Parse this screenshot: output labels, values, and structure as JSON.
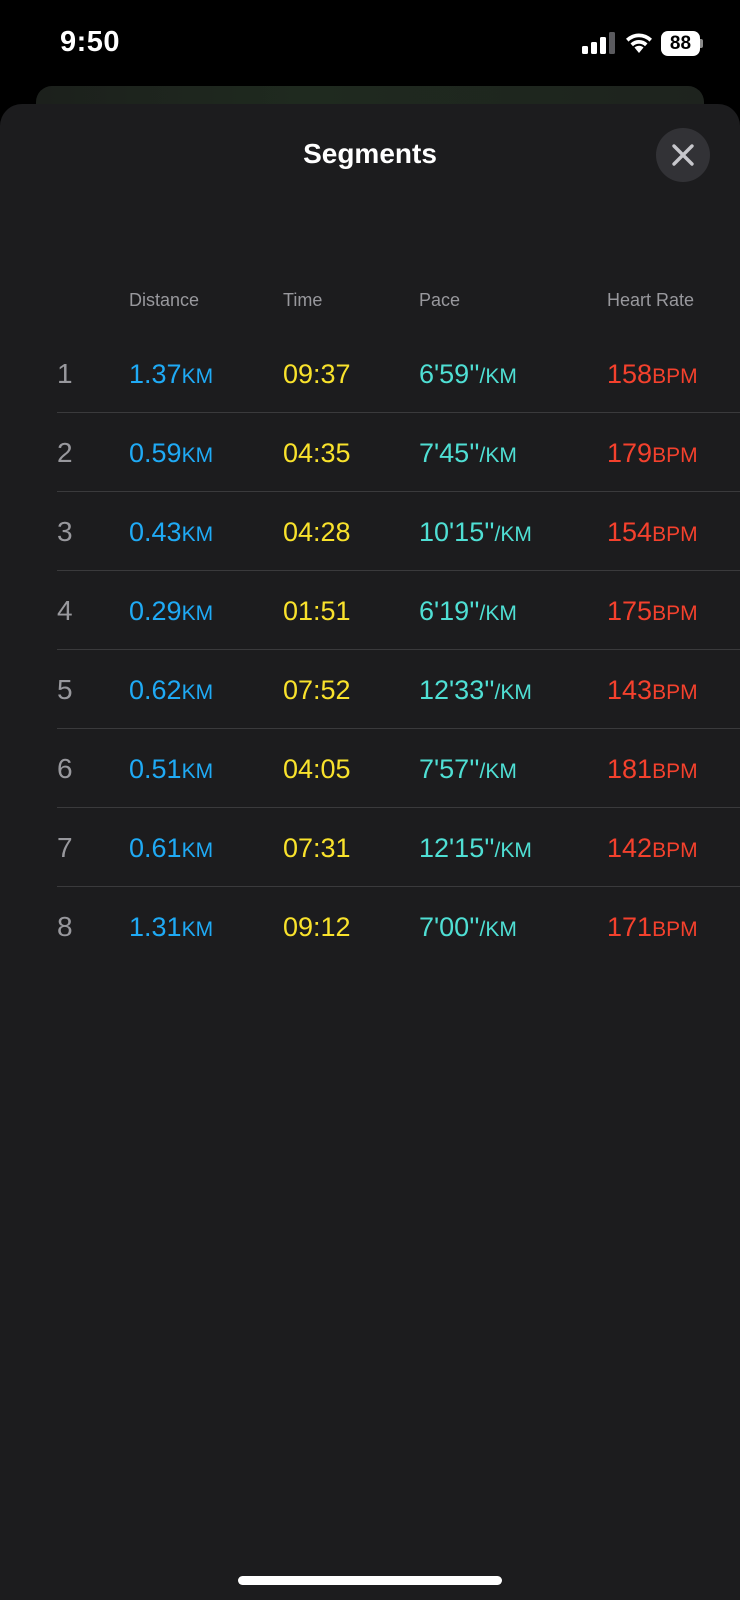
{
  "status_bar": {
    "time": "9:50",
    "battery": "88",
    "icons": [
      "signal-icon",
      "wifi-icon",
      "battery-icon"
    ]
  },
  "sheet": {
    "title": "Segments",
    "close_icon": "close-icon"
  },
  "table": {
    "headers": {
      "distance": "Distance",
      "time": "Time",
      "pace": "Pace",
      "heart_rate": "Heart Rate"
    },
    "rows": [
      {
        "index": "1",
        "distance": "1.37",
        "distance_unit": "KM",
        "time": "09:37",
        "pace": "6'59''",
        "pace_unit": "/KM",
        "heart_rate": "158",
        "hr_unit": "BPM"
      },
      {
        "index": "2",
        "distance": "0.59",
        "distance_unit": "KM",
        "time": "04:35",
        "pace": "7'45''",
        "pace_unit": "/KM",
        "heart_rate": "179",
        "hr_unit": "BPM"
      },
      {
        "index": "3",
        "distance": "0.43",
        "distance_unit": "KM",
        "time": "04:28",
        "pace": "10'15''",
        "pace_unit": "/KM",
        "heart_rate": "154",
        "hr_unit": "BPM"
      },
      {
        "index": "4",
        "distance": "0.29",
        "distance_unit": "KM",
        "time": "01:51",
        "pace": "6'19''",
        "pace_unit": "/KM",
        "heart_rate": "175",
        "hr_unit": "BPM"
      },
      {
        "index": "5",
        "distance": "0.62",
        "distance_unit": "KM",
        "time": "07:52",
        "pace": "12'33''",
        "pace_unit": "/KM",
        "heart_rate": "143",
        "hr_unit": "BPM"
      },
      {
        "index": "6",
        "distance": "0.51",
        "distance_unit": "KM",
        "time": "04:05",
        "pace": "7'57''",
        "pace_unit": "/KM",
        "heart_rate": "181",
        "hr_unit": "BPM"
      },
      {
        "index": "7",
        "distance": "0.61",
        "distance_unit": "KM",
        "time": "07:31",
        "pace": "12'15''",
        "pace_unit": "/KM",
        "heart_rate": "142",
        "hr_unit": "BPM"
      },
      {
        "index": "8",
        "distance": "1.31",
        "distance_unit": "KM",
        "time": "09:12",
        "pace": "7'00''",
        "pace_unit": "/KM",
        "heart_rate": "171",
        "hr_unit": "BPM"
      }
    ]
  },
  "colors": {
    "distance": "#1faaf5",
    "time": "#f9e22c",
    "pace": "#4fdfd4",
    "heart_rate": "#f4412d",
    "sheet_background": "#1c1c1e"
  }
}
